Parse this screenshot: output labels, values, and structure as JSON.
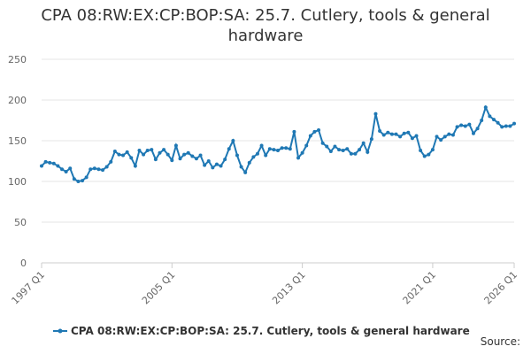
{
  "chart_data": {
    "type": "line",
    "title": "CPA 08:RW:EX:CP:BOP:SA: 25.7. Cutlery, tools & general hardware",
    "source": "Source:",
    "categories": [
      "1997 Q1",
      null,
      null,
      null,
      null,
      null,
      null,
      null,
      null,
      null,
      null,
      null,
      null,
      null,
      null,
      null,
      null,
      null,
      null,
      null,
      null,
      null,
      null,
      null,
      null,
      null,
      null,
      null,
      null,
      null,
      null,
      null,
      "2005 Q1",
      null,
      null,
      null,
      null,
      null,
      null,
      null,
      null,
      null,
      null,
      null,
      null,
      null,
      null,
      null,
      null,
      null,
      null,
      null,
      null,
      null,
      null,
      null,
      null,
      null,
      null,
      null,
      null,
      null,
      null,
      null,
      "2013 Q1",
      null,
      null,
      null,
      null,
      null,
      null,
      null,
      null,
      null,
      null,
      null,
      null,
      null,
      null,
      null,
      null,
      null,
      null,
      null,
      null,
      null,
      null,
      null,
      null,
      null,
      null,
      null,
      null,
      null,
      null,
      null,
      "2021 Q1",
      null,
      null,
      null,
      null,
      null,
      null,
      null,
      null,
      null,
      null,
      null,
      null,
      null,
      null,
      null,
      null,
      null,
      null,
      null,
      "2026 Q1"
    ],
    "series": [
      {
        "name": "CPA 08:RW:EX:CP:BOP:SA: 25.7. Cutlery, tools & general hardware",
        "color": "#1f78b4",
        "values": [
          119,
          124,
          123,
          122,
          119,
          115,
          112,
          116,
          103,
          100,
          101,
          105,
          115,
          116,
          115,
          114,
          118,
          124,
          137,
          133,
          132,
          136,
          129,
          119,
          138,
          133,
          138,
          139,
          127,
          135,
          139,
          133,
          126,
          144,
          128,
          133,
          135,
          131,
          128,
          132,
          120,
          125,
          117,
          121,
          119,
          127,
          140,
          150,
          132,
          118,
          111,
          123,
          130,
          134,
          144,
          132,
          140,
          139,
          138,
          141,
          141,
          140,
          161,
          129,
          135,
          144,
          156,
          161,
          163,
          147,
          143,
          137,
          143,
          139,
          138,
          140,
          134,
          134,
          139,
          147,
          136,
          152,
          183,
          162,
          157,
          160,
          158,
          158,
          155,
          159,
          160,
          153,
          156,
          138,
          131,
          133,
          139,
          155,
          151,
          155,
          158,
          157,
          167,
          169,
          168,
          170,
          159,
          165,
          175,
          191,
          180,
          176,
          172,
          167,
          168,
          168,
          171
        ]
      }
    ],
    "ylim": [
      0,
      250
    ],
    "yticks": [
      0,
      50,
      100,
      150,
      200,
      250
    ],
    "grid": true,
    "legend": "bottom"
  }
}
